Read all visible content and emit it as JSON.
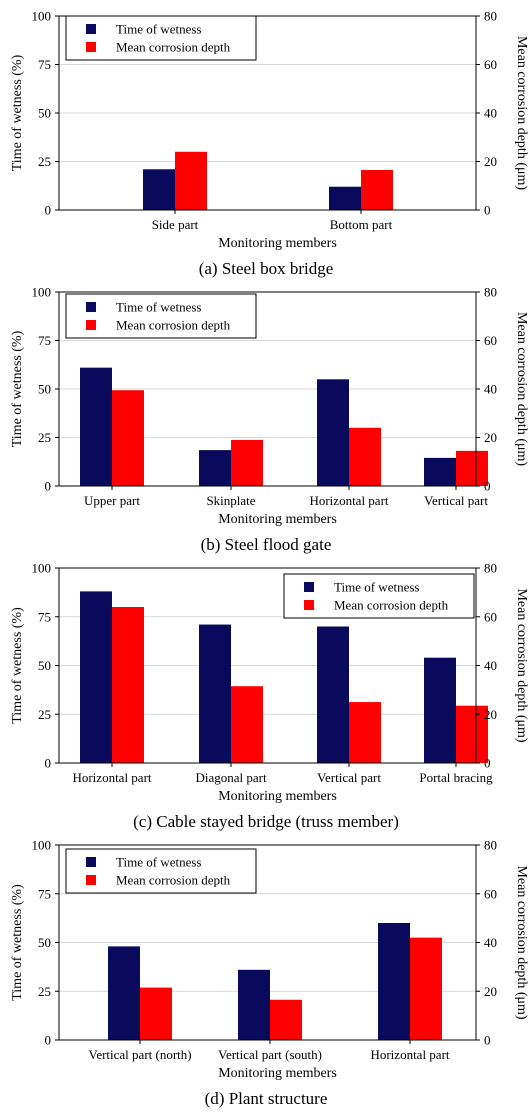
{
  "colors": {
    "time_of_wetness": "#0a0a5c",
    "mean_corrosion_depth": "#ff0000",
    "grid": "#d9d9d9",
    "axis": "#000000"
  },
  "chart_data": [
    {
      "type": "bar",
      "caption": "(a) Steel box bridge",
      "xlabel": "Monitoring members",
      "ylabel_left": "Time of wetness (%)",
      "ylabel_right": "Mean corrosion depth (μm)",
      "ylim_left": [
        0,
        100
      ],
      "ylim_right": [
        0,
        80
      ],
      "yticks_left": [
        "0",
        "25",
        "50",
        "75",
        "100"
      ],
      "yticks_right": [
        "0",
        "20",
        "40",
        "60",
        "80"
      ],
      "grid": true,
      "legend": "top-left",
      "categories": [
        "Side part",
        "Bottom part"
      ],
      "series": [
        {
          "name": "Time of wetness",
          "axis": "left",
          "values": [
            21,
            12
          ]
        },
        {
          "name": "Mean corrosion depth",
          "axis": "right",
          "values": [
            24,
            16.5
          ]
        }
      ]
    },
    {
      "type": "bar",
      "caption": "(b) Steel flood gate",
      "xlabel": "Monitoring members",
      "ylabel_left": "Time of wetness (%)",
      "ylabel_right": "Mean corrosion depth (μm)",
      "ylim_left": [
        0,
        100
      ],
      "ylim_right": [
        0,
        80
      ],
      "yticks_left": [
        "0",
        "25",
        "50",
        "75",
        "100"
      ],
      "yticks_right": [
        "0",
        "20",
        "40",
        "60",
        "80"
      ],
      "grid": true,
      "legend": "top-left",
      "categories": [
        "Upper part",
        "Skinplate",
        "Horizontal part",
        "Vertical part"
      ],
      "series": [
        {
          "name": "Time of wetness",
          "axis": "left",
          "values": [
            61,
            18.5,
            55,
            14.5
          ]
        },
        {
          "name": "Mean corrosion depth",
          "axis": "right",
          "values": [
            39.5,
            19,
            24,
            14.5
          ]
        }
      ]
    },
    {
      "type": "bar",
      "caption": "(c) Cable stayed bridge (truss member)",
      "xlabel": "Monitoring members",
      "ylabel_left": "Time of wetness (%)",
      "ylabel_right": "Mean corrosion depth (μm)",
      "ylim_left": [
        0,
        100
      ],
      "ylim_right": [
        0,
        80
      ],
      "yticks_left": [
        "0",
        "25",
        "50",
        "75",
        "100"
      ],
      "yticks_right": [
        "0",
        "20",
        "40",
        "60",
        "80"
      ],
      "grid": true,
      "legend": "top-right",
      "categories": [
        "Horizontal part",
        "Diagonal part",
        "Vertical part",
        "Portal bracing"
      ],
      "series": [
        {
          "name": "Time of wetness",
          "axis": "left",
          "values": [
            88,
            71,
            70,
            54
          ]
        },
        {
          "name": "Mean corrosion depth",
          "axis": "right",
          "values": [
            64,
            31.5,
            25,
            23.5
          ]
        }
      ]
    },
    {
      "type": "bar",
      "caption": "(d) Plant structure",
      "xlabel": "Monitoring members",
      "ylabel_left": "Time of wetness (%)",
      "ylabel_right": "Mean corrosion depth (μm)",
      "ylim_left": [
        0,
        100
      ],
      "ylim_right": [
        0,
        80
      ],
      "yticks_left": [
        "0",
        "25",
        "50",
        "75",
        "100"
      ],
      "yticks_right": [
        "0",
        "20",
        "40",
        "60",
        "80"
      ],
      "grid": true,
      "legend": "top-left",
      "categories": [
        "Vertical part (north)",
        "Vertical part (south)",
        "Horizontal part"
      ],
      "series": [
        {
          "name": "Time of wetness",
          "axis": "left",
          "values": [
            48,
            36,
            60
          ]
        },
        {
          "name": "Mean corrosion depth",
          "axis": "right",
          "values": [
            21.5,
            16.5,
            42
          ]
        }
      ]
    }
  ]
}
